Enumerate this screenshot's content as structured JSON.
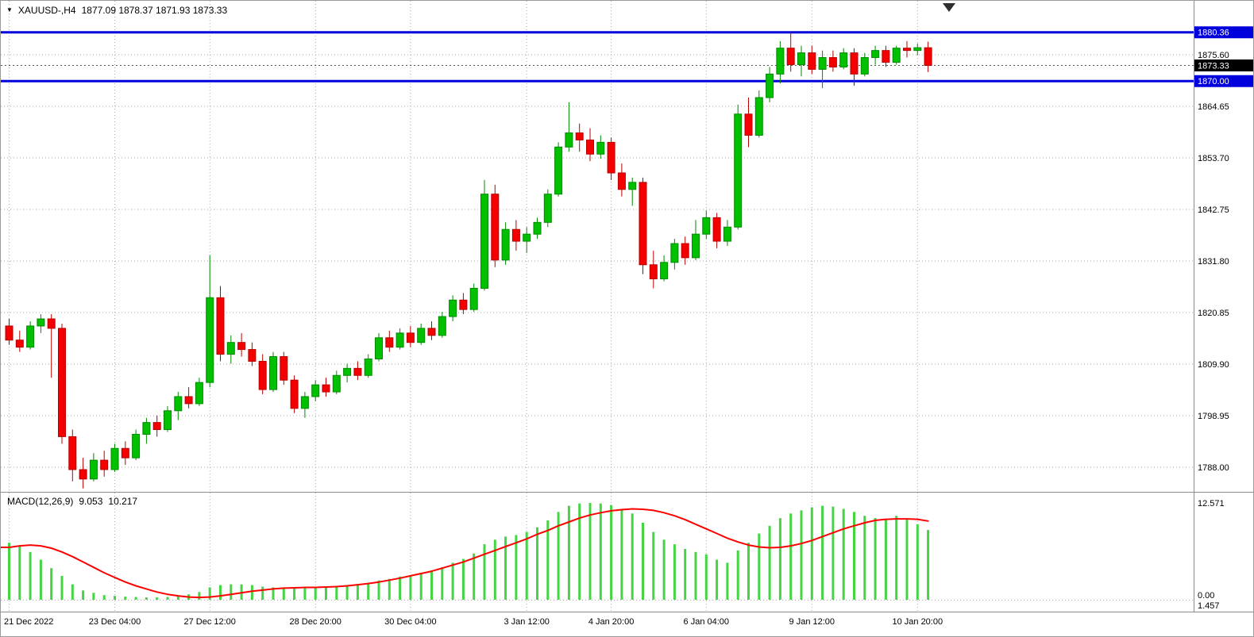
{
  "header": {
    "symbol": "XAUUSD-,H4",
    "ohlc": "1877.09 1878.37 1871.93 1873.33"
  },
  "icons": {
    "symbol_dropdown": "▼"
  },
  "colors": {
    "background": "#FFFFFF",
    "bull": "#00C000",
    "bull_border": "#008A00",
    "bear": "#F40000",
    "bear_border": "#B80000",
    "hline": "#0000DC",
    "hline_label_bg": "#0000DC",
    "current_label_bg": "#000000",
    "label_text": "#FFFFFF",
    "grid": "#A8A8A8",
    "separator": "#8C8C8C",
    "current_line": "#555555",
    "macd_hist": "#44D444",
    "macd_signal": "#FF0000",
    "axis_text": "#000000",
    "shift_marker": "#2F2F2F"
  },
  "chart_data": {
    "type": "candlestick",
    "title": "XAUUSD-,H4",
    "ohlc_display": {
      "open": "1877.09",
      "high": "1878.37",
      "low": "1871.93",
      "close": "1873.33"
    },
    "price_ticks": [
      {
        "value": 1875.6,
        "label": "1875.60"
      },
      {
        "value": 1864.65,
        "label": "1864.65"
      },
      {
        "value": 1853.7,
        "label": "1853.70"
      },
      {
        "value": 1842.75,
        "label": "1842.75"
      },
      {
        "value": 1831.8,
        "label": "1831.80"
      },
      {
        "value": 1820.85,
        "label": "1820.85"
      },
      {
        "value": 1809.9,
        "label": "1809.90"
      },
      {
        "value": 1798.95,
        "label": "1798.95"
      },
      {
        "value": 1788.0,
        "label": "1788.00"
      }
    ],
    "time_ticks": [
      {
        "candle": 0,
        "label": "21 Dec 2022"
      },
      {
        "candle": 10,
        "label": "23 Dec 04:00"
      },
      {
        "candle": 19,
        "label": "27 Dec 12:00"
      },
      {
        "candle": 29,
        "label": "28 Dec 20:00"
      },
      {
        "candle": 38,
        "label": "30 Dec 04:00"
      },
      {
        "candle": 49,
        "label": "3 Jan 12:00"
      },
      {
        "candle": 57,
        "label": "4 Jan 20:00"
      },
      {
        "candle": 66,
        "label": "6 Jan 04:00"
      },
      {
        "candle": 76,
        "label": "9 Jan 12:00"
      },
      {
        "candle": 86,
        "label": "10 Jan 20:00"
      }
    ],
    "hlines": [
      {
        "value": 1880.36,
        "label": "1880.36"
      },
      {
        "value": 1870.0,
        "label": "1870.00"
      }
    ],
    "current_price": {
      "value": 1873.33,
      "label": "1873.33"
    },
    "candles": [
      [
        1818,
        1819.5,
        1814,
        1815
      ],
      [
        1815,
        1817,
        1812.5,
        1813.5
      ],
      [
        1813.5,
        1819,
        1813,
        1818
      ],
      [
        1818,
        1820.5,
        1816.5,
        1819.5
      ],
      [
        1819.5,
        1820.5,
        1807,
        1817.5
      ],
      [
        1817.5,
        1818.5,
        1793,
        1794.5
      ],
      [
        1794.5,
        1796,
        1785,
        1787.5
      ],
      [
        1787.5,
        1790,
        1783.5,
        1785.5
      ],
      [
        1785.5,
        1791,
        1785,
        1789.5
      ],
      [
        1789.5,
        1791.5,
        1786,
        1787.5
      ],
      [
        1787.5,
        1793,
        1787,
        1792
      ],
      [
        1792,
        1793.5,
        1788.5,
        1790
      ],
      [
        1790,
        1796,
        1789.5,
        1795
      ],
      [
        1795,
        1798.5,
        1793,
        1797.5
      ],
      [
        1797.5,
        1799,
        1794.5,
        1796
      ],
      [
        1796,
        1801,
        1795.5,
        1800
      ],
      [
        1800,
        1804,
        1798,
        1803
      ],
      [
        1803,
        1805,
        1800.5,
        1801.5
      ],
      [
        1801.5,
        1807,
        1801,
        1806
      ],
      [
        1806,
        1833,
        1805,
        1824
      ],
      [
        1824,
        1826.5,
        1810.5,
        1812
      ],
      [
        1812,
        1816,
        1810,
        1814.5
      ],
      [
        1814.5,
        1816.5,
        1811.5,
        1813
      ],
      [
        1813,
        1814.5,
        1809.5,
        1810.5
      ],
      [
        1810.5,
        1812,
        1803.5,
        1804.5
      ],
      [
        1804.5,
        1812.5,
        1804,
        1811.5
      ],
      [
        1811.5,
        1812.5,
        1805.5,
        1806.5
      ],
      [
        1806.5,
        1807.5,
        1799.5,
        1800.5
      ],
      [
        1800.5,
        1804,
        1798.5,
        1803
      ],
      [
        1803,
        1806.5,
        1802,
        1805.5
      ],
      [
        1805.5,
        1807,
        1803,
        1804
      ],
      [
        1804,
        1808.5,
        1803.5,
        1807.5
      ],
      [
        1807.5,
        1810,
        1806,
        1809
      ],
      [
        1809,
        1810.5,
        1806.5,
        1807.5
      ],
      [
        1807.5,
        1812,
        1807,
        1811
      ],
      [
        1811,
        1816.5,
        1810.5,
        1815.5
      ],
      [
        1815.5,
        1817,
        1812.5,
        1813.5
      ],
      [
        1813.5,
        1817.5,
        1813,
        1816.5
      ],
      [
        1816.5,
        1818,
        1813.5,
        1814.5
      ],
      [
        1814.5,
        1818.5,
        1814,
        1817.5
      ],
      [
        1817.5,
        1819,
        1815,
        1816
      ],
      [
        1816,
        1821,
        1815.5,
        1820
      ],
      [
        1820,
        1824.5,
        1819,
        1823.5
      ],
      [
        1823.5,
        1825,
        1820.5,
        1821.5
      ],
      [
        1821.5,
        1827,
        1821,
        1826
      ],
      [
        1826,
        1849,
        1825.5,
        1846
      ],
      [
        1846,
        1848,
        1830.5,
        1832
      ],
      [
        1832,
        1840,
        1831,
        1838.5
      ],
      [
        1838.5,
        1840.5,
        1834,
        1836
      ],
      [
        1836,
        1839,
        1833.5,
        1837.5
      ],
      [
        1837.5,
        1841,
        1836.5,
        1840
      ],
      [
        1840,
        1847,
        1839,
        1846
      ],
      [
        1846,
        1857,
        1845.5,
        1856
      ],
      [
        1856,
        1865.5,
        1855,
        1859
      ],
      [
        1859,
        1861,
        1855,
        1857.5
      ],
      [
        1857.5,
        1860,
        1853,
        1854.5
      ],
      [
        1854.5,
        1858.5,
        1853.5,
        1857
      ],
      [
        1857,
        1858,
        1849,
        1850.5
      ],
      [
        1850.5,
        1852.5,
        1845.5,
        1847
      ],
      [
        1847,
        1849.5,
        1843.5,
        1848.5
      ],
      [
        1848.5,
        1849.5,
        1829,
        1831
      ],
      [
        1831,
        1834,
        1826,
        1828
      ],
      [
        1828,
        1833,
        1827.5,
        1831.5
      ],
      [
        1831.5,
        1836.5,
        1830,
        1835.5
      ],
      [
        1835.5,
        1837,
        1831,
        1832.5
      ],
      [
        1832.5,
        1840.5,
        1832,
        1837.5
      ],
      [
        1837.5,
        1842.5,
        1836.5,
        1841
      ],
      [
        1841,
        1842,
        1834.5,
        1836
      ],
      [
        1836,
        1840.5,
        1835,
        1839
      ],
      [
        1839,
        1865,
        1838.5,
        1863
      ],
      [
        1863,
        1866.5,
        1856,
        1858.5
      ],
      [
        1858.5,
        1868,
        1858,
        1866.5
      ],
      [
        1866.5,
        1873,
        1865.5,
        1871.5
      ],
      [
        1871.5,
        1878.5,
        1869.5,
        1877
      ],
      [
        1877,
        1880.5,
        1872,
        1873.5
      ],
      [
        1873.5,
        1877.5,
        1871,
        1876
      ],
      [
        1876,
        1877.5,
        1871.5,
        1872.5
      ],
      [
        1872.5,
        1876.5,
        1868.5,
        1875
      ],
      [
        1875,
        1876.5,
        1872,
        1873
      ],
      [
        1873,
        1877,
        1872.5,
        1876
      ],
      [
        1876,
        1877,
        1869,
        1871.5
      ],
      [
        1871.5,
        1876,
        1871,
        1875
      ],
      [
        1875,
        1877.5,
        1873.5,
        1876.5
      ],
      [
        1876.5,
        1877.5,
        1873,
        1874
      ],
      [
        1874,
        1877.5,
        1873.5,
        1877
      ],
      [
        1877,
        1878.5,
        1875,
        1876.5
      ],
      [
        1876.5,
        1878,
        1875.5,
        1877.1
      ],
      [
        1877.09,
        1878.37,
        1871.93,
        1873.33
      ]
    ],
    "macd": {
      "label": "MACD(12,26,9)",
      "value_main": "9.053",
      "value_signal": "10.217",
      "scale": [
        {
          "value": 12.571,
          "label": "12.571"
        },
        {
          "value": 0,
          "label": "0.00"
        },
        {
          "value": -1.457,
          "label": "1.457"
        }
      ],
      "histogram": [
        7.4,
        6.9,
        6.2,
        5.2,
        4.1,
        3.1,
        2.0,
        1.2,
        0.9,
        0.6,
        0.5,
        0.4,
        0.35,
        0.3,
        0.3,
        0.35,
        0.5,
        0.7,
        1.0,
        1.6,
        1.9,
        2.0,
        2.0,
        1.9,
        1.7,
        1.6,
        1.6,
        1.5,
        1.5,
        1.6,
        1.7,
        1.8,
        1.9,
        2.0,
        2.2,
        2.5,
        2.7,
        3.0,
        3.2,
        3.5,
        3.8,
        4.2,
        4.8,
        5.3,
        6.0,
        7.2,
        7.8,
        8.2,
        8.4,
        8.8,
        9.4,
        10.3,
        11.4,
        12.2,
        12.5,
        12.57,
        12.5,
        12.3,
        11.8,
        11.2,
        10.0,
        8.8,
        7.8,
        7.2,
        6.6,
        6.2,
        5.9,
        5.2,
        4.8,
        6.4,
        7.4,
        8.6,
        9.6,
        10.6,
        11.2,
        11.6,
        12.0,
        12.2,
        12.1,
        11.8,
        11.4,
        10.9,
        10.6,
        10.4,
        10.9,
        10.4,
        9.8,
        9.053
      ],
      "signal": [
        6.8,
        7.0,
        7.1,
        7.0,
        6.7,
        6.2,
        5.6,
        4.9,
        4.2,
        3.5,
        2.9,
        2.3,
        1.8,
        1.4,
        1.0,
        0.7,
        0.5,
        0.35,
        0.3,
        0.35,
        0.5,
        0.7,
        0.9,
        1.1,
        1.25,
        1.4,
        1.5,
        1.55,
        1.6,
        1.6,
        1.65,
        1.7,
        1.8,
        1.95,
        2.1,
        2.3,
        2.55,
        2.8,
        3.1,
        3.4,
        3.7,
        4.1,
        4.5,
        4.9,
        5.4,
        5.9,
        6.4,
        6.9,
        7.4,
        7.9,
        8.5,
        9.0,
        9.6,
        10.1,
        10.6,
        11.0,
        11.3,
        11.55,
        11.7,
        11.8,
        11.75,
        11.6,
        11.3,
        10.9,
        10.4,
        9.8,
        9.2,
        8.6,
        8.0,
        7.5,
        7.1,
        6.85,
        6.75,
        6.8,
        7.0,
        7.3,
        7.7,
        8.2,
        8.7,
        9.2,
        9.6,
        10.0,
        10.3,
        10.45,
        10.5,
        10.5,
        10.45,
        10.217
      ]
    }
  }
}
